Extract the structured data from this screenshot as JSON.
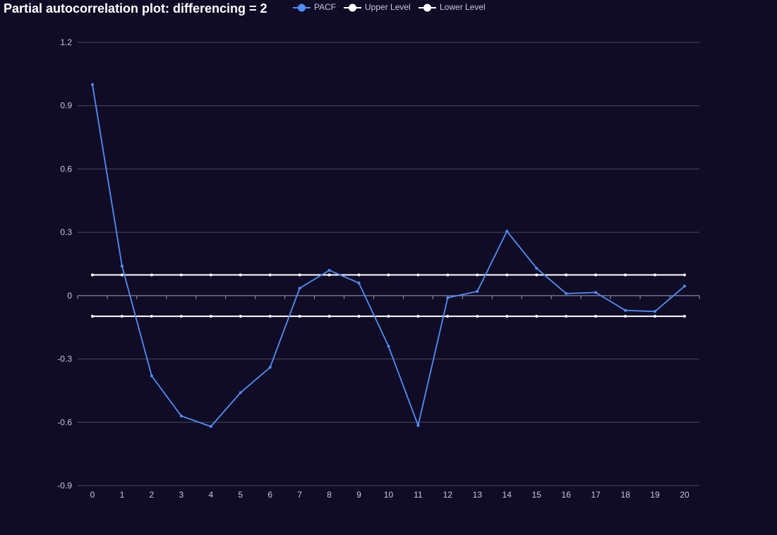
{
  "chart_data": {
    "type": "line",
    "title": "Partial autocorrelation plot: differencing = 2",
    "xlabel": "",
    "ylabel": "",
    "x": [
      0,
      1,
      2,
      3,
      4,
      5,
      6,
      7,
      8,
      9,
      10,
      11,
      12,
      13,
      14,
      15,
      16,
      17,
      18,
      19,
      20
    ],
    "ylim": [
      -0.9,
      1.2
    ],
    "yticks": [
      "1.2",
      "0.9",
      "0.6",
      "0.3",
      "0",
      "-0.3",
      "-0.6",
      "-0.9"
    ],
    "ytick_values": [
      1.2,
      0.9,
      0.6,
      0.3,
      0,
      -0.3,
      -0.6,
      -0.9
    ],
    "grid": true,
    "legend_position": "top-center",
    "series": [
      {
        "name": "PACF",
        "color": "#4f8ff7",
        "values": [
          1.0,
          0.14,
          -0.38,
          -0.57,
          -0.62,
          -0.46,
          -0.34,
          0.035,
          0.12,
          0.06,
          -0.24,
          -0.615,
          -0.01,
          0.02,
          0.305,
          0.13,
          0.01,
          0.015,
          -0.07,
          -0.075,
          0.045
        ]
      },
      {
        "name": "Upper Level",
        "color": "#ffffff",
        "values": [
          0.098,
          0.098,
          0.098,
          0.098,
          0.098,
          0.098,
          0.098,
          0.098,
          0.098,
          0.098,
          0.098,
          0.098,
          0.098,
          0.098,
          0.098,
          0.098,
          0.098,
          0.098,
          0.098,
          0.098,
          0.098
        ]
      },
      {
        "name": "Lower Level",
        "color": "#ffffff",
        "values": [
          -0.098,
          -0.098,
          -0.098,
          -0.098,
          -0.098,
          -0.098,
          -0.098,
          -0.098,
          -0.098,
          -0.098,
          -0.098,
          -0.098,
          -0.098,
          -0.098,
          -0.098,
          -0.098,
          -0.098,
          -0.098,
          -0.098,
          -0.098,
          -0.098
        ]
      }
    ]
  },
  "colors": {
    "background": "#100c26",
    "grid": "#4a4a62",
    "text": "#c8c8d8"
  }
}
